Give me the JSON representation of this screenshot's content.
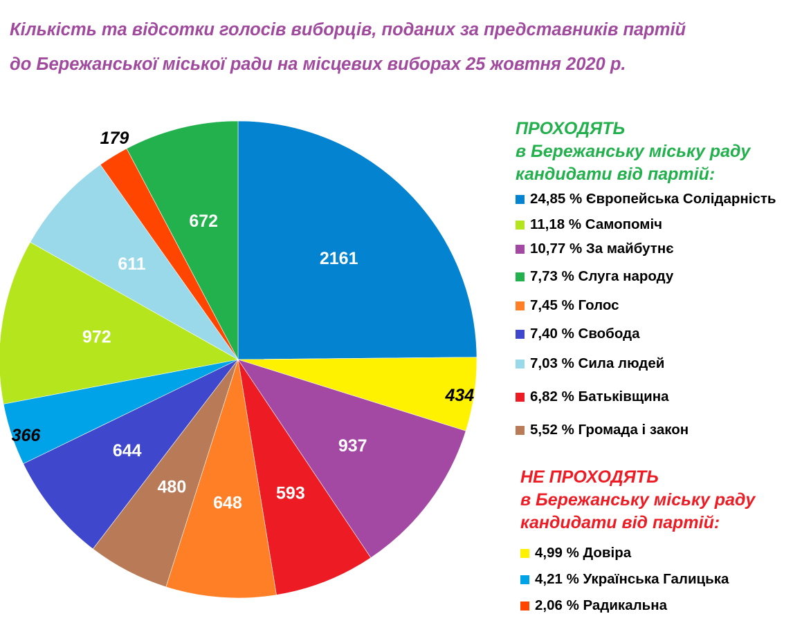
{
  "chart_data": {
    "type": "pie",
    "title_lines": [
      "Кількість та відсотки голосів виборців, поданих за представників партій",
      "до Бережанської міської ради на місцевих виборах 25 жовтня 2020 р."
    ],
    "slices": [
      {
        "label": "Європейська Солідарність",
        "value": 2161,
        "value_label": "2161",
        "percent_label": "24,85 %",
        "color": "#0383d0",
        "label_style": "inside"
      },
      {
        "label": "Довіра",
        "value": 434,
        "value_label": "434",
        "percent_label": "4,99 %",
        "color": "#fff200",
        "label_style": "outside"
      },
      {
        "label": "За майбутнє",
        "value": 937,
        "value_label": "937",
        "percent_label": "10,77 %",
        "color": "#a349a4",
        "label_style": "inside"
      },
      {
        "label": "Батьківщина",
        "value": 593,
        "value_label": "593",
        "percent_label": "6,82 %",
        "color": "#ed1c24",
        "label_style": "inside"
      },
      {
        "label": "Голос",
        "value": 648,
        "value_label": "648",
        "percent_label": "7,45 %",
        "color": "#ff7f27",
        "label_style": "inside"
      },
      {
        "label": "Громада і закон",
        "value": 480,
        "value_label": "480",
        "percent_label": "5,52 %",
        "color": "#b97a57",
        "label_style": "inside"
      },
      {
        "label": "Свобода",
        "value": 644,
        "value_label": "644",
        "percent_label": "7,40 %",
        "color": "#3f48cc",
        "label_style": "inside"
      },
      {
        "label": "Українська Галицька",
        "value": 366,
        "value_label": "366",
        "percent_label": "4,21 %",
        "color": "#00a2e8",
        "label_style": "outside"
      },
      {
        "label": "Самопоміч",
        "value": 972,
        "value_label": "972",
        "percent_label": "11,18 %",
        "color": "#b5e61d",
        "label_style": "inside"
      },
      {
        "label": "Сила людей",
        "value": 611,
        "value_label": "611",
        "percent_label": "7,03 %",
        "color": "#99d9ea",
        "label_style": "inside"
      },
      {
        "label": "Радикальна",
        "value": 179,
        "value_label": "179",
        "percent_label": "2,06 %",
        "color": "#ff4500",
        "label_style": "outside"
      },
      {
        "label": "Слуга народу",
        "value": 672,
        "value_label": "672",
        "percent_label": "7,73 %",
        "color": "#22b14c",
        "label_style": "inside"
      }
    ],
    "legend": {
      "pass_heading_lines": [
        "ПРОХОДЯТЬ",
        "в Бережанську міську раду",
        "кандидати від партій:"
      ],
      "pass_color": "#22b04c",
      "pass_items": [
        {
          "text": "24,85 % Європейська Солідарність",
          "color": "#0383d0"
        },
        {
          "text": "11,18 % Самопоміч",
          "color": "#b5e61d"
        },
        {
          "text": "10,77 % За майбутнє",
          "color": "#a349a4"
        },
        {
          "text": "7,73 % Слуга народу",
          "color": "#22b14c"
        },
        {
          "text": "7,45 % Голос",
          "color": "#ff7f27"
        },
        {
          "text": "7,40 % Свобода",
          "color": "#3f48cc"
        },
        {
          "text": "7,03 % Сила людей",
          "color": "#99d9ea"
        },
        {
          "text": "6,82 % Батьківщина",
          "color": "#ed1c24"
        },
        {
          "text": "5,52 % Громада і закон",
          "color": "#b97a57"
        }
      ],
      "fail_heading_lines": [
        "НЕ ПРОХОДЯТЬ",
        "в Бережанську міську раду",
        "кандидати від партій:"
      ],
      "fail_color": "#ed1c24",
      "fail_items": [
        {
          "text": "4,99 % Довіра",
          "color": "#fff200"
        },
        {
          "text": "4,21 % Українська Галицька",
          "color": "#00a2e8"
        },
        {
          "text": "2,06 % Радикальна",
          "color": "#ff4500"
        }
      ]
    }
  }
}
